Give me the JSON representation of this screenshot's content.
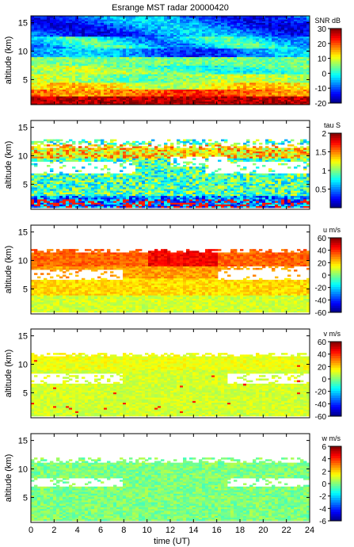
{
  "title": "Esrange MST radar 20000420",
  "xlabel": "time (UT)",
  "x_ticks": [
    0,
    2,
    4,
    6,
    8,
    10,
    12,
    14,
    16,
    18,
    20,
    22,
    24
  ],
  "chart_data": [
    {
      "type": "heatmap",
      "quantity": "SNR",
      "colorbar_label": "SNR dB",
      "ylabel": "altitude (km)",
      "xlabel": "",
      "xlim": [
        0,
        24
      ],
      "ylim": [
        0.6,
        16.2
      ],
      "y_ticks": [
        5,
        10,
        15
      ],
      "clim": [
        -20,
        30
      ],
      "colorbar_ticks": [
        -20,
        -10,
        0,
        10,
        20,
        30
      ],
      "colormap": "jet",
      "profile_description_by_altitude": [
        [
          1,
          30
        ],
        [
          2,
          25
        ],
        [
          3,
          18
        ],
        [
          4,
          14
        ],
        [
          5,
          12
        ],
        [
          6,
          8
        ],
        [
          7,
          6
        ],
        [
          8,
          10
        ],
        [
          9,
          0
        ],
        [
          10,
          -6
        ],
        [
          11,
          -4
        ],
        [
          12,
          2
        ],
        [
          13,
          -2
        ],
        [
          14,
          -8
        ],
        [
          15,
          -4
        ],
        [
          16,
          -10
        ]
      ]
    },
    {
      "type": "heatmap",
      "quantity": "tau",
      "colorbar_label": "tau S",
      "ylabel": "altitude (km)",
      "xlabel": "",
      "xlim": [
        0,
        24
      ],
      "ylim": [
        0.6,
        16.2
      ],
      "y_ticks": [
        5,
        10,
        15
      ],
      "clim": [
        0,
        2
      ],
      "colorbar_ticks": [
        0.5,
        1,
        1.5,
        2
      ],
      "colormap": "jet",
      "data_altitude_range": [
        1,
        13
      ]
    },
    {
      "type": "heatmap",
      "quantity": "u",
      "colorbar_label": "u m/s",
      "ylabel": "altitude (km)",
      "xlabel": "",
      "xlim": [
        0,
        24
      ],
      "ylim": [
        0.6,
        16.2
      ],
      "y_ticks": [
        5,
        10,
        15
      ],
      "clim": [
        -60,
        60
      ],
      "colorbar_ticks": [
        -60,
        -40,
        -20,
        0,
        20,
        40,
        60
      ],
      "colormap": "jet",
      "data_altitude_range": [
        1,
        12
      ]
    },
    {
      "type": "heatmap",
      "quantity": "v",
      "colorbar_label": "v m/s",
      "ylabel": "altitude (km)",
      "xlabel": "",
      "xlim": [
        0,
        24
      ],
      "ylim": [
        0.6,
        16.2
      ],
      "y_ticks": [
        5,
        10,
        15
      ],
      "clim": [
        -60,
        60
      ],
      "colorbar_ticks": [
        -60,
        -40,
        -20,
        0,
        20,
        40,
        60
      ],
      "colormap": "jet",
      "data_altitude_range": [
        1,
        12
      ]
    },
    {
      "type": "heatmap",
      "quantity": "w",
      "colorbar_label": "w m/s",
      "ylabel": "altitude (km)",
      "xlabel": "time (UT)",
      "xlim": [
        0,
        24
      ],
      "ylim": [
        0.6,
        16.2
      ],
      "y_ticks": [
        5,
        10,
        15
      ],
      "clim": [
        -6,
        6
      ],
      "colorbar_ticks": [
        -6,
        -4,
        -2,
        0,
        2,
        4,
        6
      ],
      "colormap": "jet",
      "data_altitude_range": [
        1,
        12
      ]
    }
  ]
}
